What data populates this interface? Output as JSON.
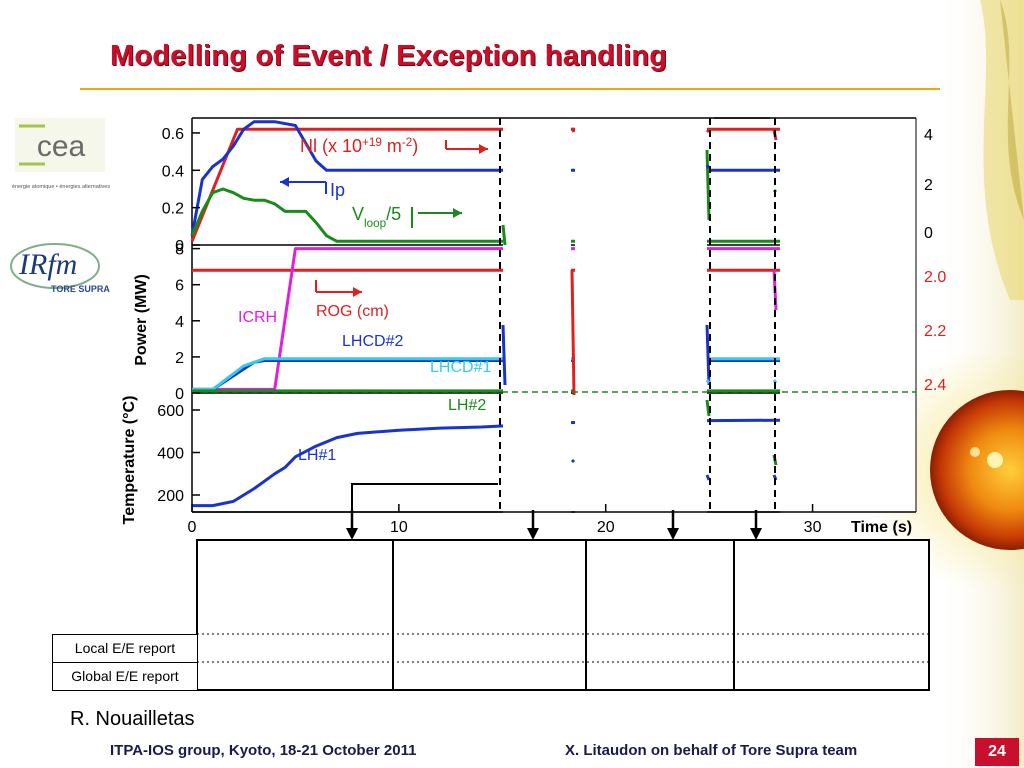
{
  "slide": {
    "title": "Modelling of Event / Exception handling",
    "author": "R. Nouailletas",
    "footer_left": "ITPA-IOS group, Kyoto, 18-21 October 2011",
    "footer_right": "X. Litaudon on behalf of Tore Supra team",
    "page_number": "24",
    "accent_color": "#c8102e",
    "rule_color": "#f2a800"
  },
  "logos": [
    {
      "name": "cea",
      "text": "cea",
      "subtitle": "énergie atomique • énergies alternatives"
    },
    {
      "name": "irfm",
      "text": "IRfm",
      "subtitle": "TORE SUPRA"
    }
  ],
  "table": {
    "rows": [
      "Local E/E report",
      "Global E/E report"
    ]
  },
  "chart_data": {
    "type": "line",
    "x_axis": {
      "label": "Time (s)",
      "range": [
        0,
        35
      ],
      "ticks": [
        "0",
        "10",
        "20",
        "30"
      ]
    },
    "panels": [
      {
        "name": "plasma",
        "y_left_ticks": [
          "0",
          "0.2",
          "0.4",
          "0.6"
        ],
        "y_left_range": [
          0,
          0.68
        ],
        "y_right_ticks": [
          "0",
          "2",
          "4"
        ],
        "series": [
          {
            "label": "Nl (x 10",
            "label_sup": "+19",
            "label_rest": " m",
            "label_sup2": "-2",
            "label_end": ")",
            "color": "#e02020",
            "x": [
              0,
              2.2,
              34
            ],
            "y": [
              0.02,
              0.62,
              0.62
            ]
          },
          {
            "label": "Ip",
            "color": "#1a33cc",
            "x": [
              0,
              0.5,
              1,
              1.5,
              2,
              2.5,
              3,
              4,
              5,
              6,
              6.5,
              34
            ],
            "y": [
              0.05,
              0.35,
              0.42,
              0.46,
              0.53,
              0.62,
              0.66,
              0.66,
              0.64,
              0.45,
              0.4,
              0.4
            ]
          },
          {
            "label": "V",
            "label_sub": "loop",
            "label_end": "/5",
            "color": "#1a8a1a",
            "x": [
              0,
              0.5,
              1,
              1.5,
              2,
              2.5,
              3,
              3.5,
              4,
              4.5,
              5,
              5.5,
              6,
              6.5,
              7,
              34
            ],
            "y": [
              0.05,
              0.18,
              0.28,
              0.3,
              0.28,
              0.25,
              0.24,
              0.24,
              0.22,
              0.18,
              0.18,
              0.18,
              0.12,
              0.05,
              0.02,
              0.02
            ]
          }
        ]
      },
      {
        "name": "power",
        "y_label": "Power (MW)",
        "y_left_ticks": [
          "0",
          "2",
          "4",
          "6",
          "8"
        ],
        "y_left_range": [
          0,
          8.2
        ],
        "y_right_ticks": [
          "2.0",
          "2.2",
          "2.4"
        ],
        "series": [
          {
            "label": "ROG (cm)",
            "color": "#e02020",
            "x": [
              0,
              34
            ],
            "y": [
              6.8,
              6.8
            ]
          },
          {
            "label": "ICRH",
            "color": "#e020e0",
            "x": [
              0,
              4,
              5,
              34
            ],
            "y": [
              0.2,
              0.2,
              8.0,
              8.0
            ]
          },
          {
            "label": "LHCD#2",
            "color": "#1a33cc",
            "x": [
              0,
              1,
              3,
              3.5,
              34
            ],
            "y": [
              0.2,
              0.2,
              1.7,
              1.8,
              1.8
            ]
          },
          {
            "label": "LHCD#1",
            "color": "#33ccee",
            "x": [
              0,
              1,
              2.5,
              3.5,
              34
            ],
            "y": [
              0.2,
              0.2,
              1.5,
              1.9,
              1.9
            ]
          }
        ]
      },
      {
        "name": "temperature",
        "y_label": "Temperature (°C)",
        "y_left_ticks": [
          "200",
          "400",
          "600"
        ],
        "y_left_range": [
          120,
          680
        ],
        "series": [
          {
            "label": "LH#2",
            "color": "#1a8a1a",
            "x": [
              0,
              34
            ],
            "y": [
              690,
              690
            ]
          },
          {
            "label": "LH#1",
            "color": "#1a33cc",
            "x": [
              0,
              1,
              2,
              3,
              4,
              4.5,
              5,
              6,
              7,
              8,
              10,
              12,
              14,
              16,
              18,
              20,
              25,
              34
            ],
            "y": [
              150,
              150,
              170,
              230,
              300,
              330,
              380,
              430,
              470,
              490,
              505,
              515,
              520,
              530,
              540,
              545,
              550,
              555
            ]
          }
        ]
      }
    ]
  }
}
